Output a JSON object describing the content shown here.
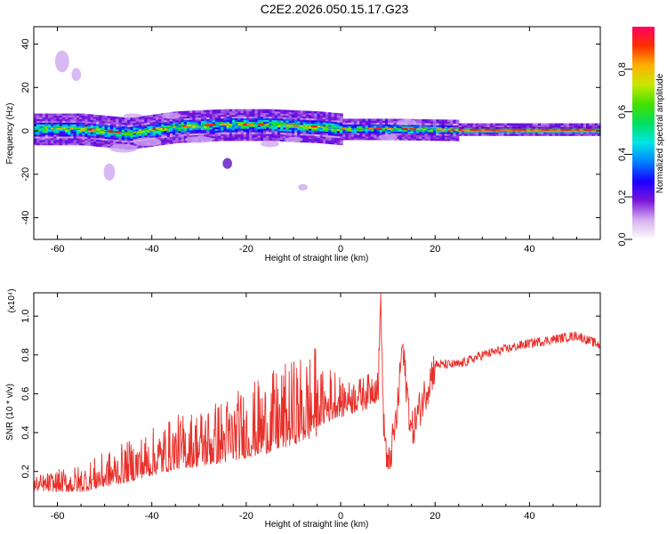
{
  "title": "C2E2.2026.050.15.17.G23",
  "chart_data": [
    {
      "type": "heatmap",
      "xlabel": "Height of straight line (km)",
      "ylabel": "Frequency (Hz)",
      "xlim": [
        -65,
        55
      ],
      "ylim": [
        -50,
        48
      ],
      "xticks": [
        -60,
        -40,
        -20,
        0,
        20,
        40
      ],
      "yticks": [
        -40,
        -20,
        0,
        20,
        40
      ],
      "colorbar": {
        "label": "Normalized spectral amplitude",
        "range": [
          0,
          1
        ],
        "ticks": [
          "0.0",
          "0.2",
          "0.4",
          "0.6",
          "0.8"
        ],
        "colors": [
          "#ffffff",
          "#d6aff0",
          "#7a16d8",
          "#1a00ff",
          "#0080ff",
          "#00e5e5",
          "#00e060",
          "#44e000",
          "#c8e800",
          "#ffb000",
          "#ff3000",
          "#ff0060"
        ]
      },
      "ridge": {
        "description_points": [
          [
            -65,
            1
          ],
          [
            -55,
            1
          ],
          [
            -45,
            -1
          ],
          [
            -35,
            2
          ],
          [
            -25,
            3
          ],
          [
            -15,
            3
          ],
          [
            -5,
            2
          ],
          [
            0,
            1
          ],
          [
            10,
            1
          ],
          [
            25,
            0.5
          ],
          [
            55,
            0.5
          ]
        ]
      }
    },
    {
      "type": "line",
      "xlabel": "Height of straight line (km)",
      "ylabel": "SNR (10 * v/v)",
      "y_multiplier": "(x10⁴)",
      "xlim": [
        -65,
        55
      ],
      "ylim": [
        0.02,
        1.12
      ],
      "xticks": [
        -60,
        -40,
        -20,
        0,
        20,
        40
      ],
      "yticks": [
        0.2,
        0.4,
        0.6,
        0.8,
        1.0
      ],
      "series": [
        {
          "color": "#e8302a",
          "trend": [
            [
              -65,
              0.12
            ],
            [
              -55,
              0.13
            ],
            [
              -45,
              0.2
            ],
            [
              -35,
              0.28
            ],
            [
              -25,
              0.33
            ],
            [
              -15,
              0.4
            ],
            [
              -5,
              0.5
            ],
            [
              0,
              0.56
            ],
            [
              5,
              0.6
            ],
            [
              8,
              0.65
            ],
            [
              8.5,
              1.12
            ],
            [
              9,
              0.5
            ],
            [
              10,
              0.2
            ],
            [
              12,
              0.5
            ],
            [
              13,
              0.85
            ],
            [
              15,
              0.4
            ],
            [
              20,
              0.75
            ],
            [
              25,
              0.75
            ],
            [
              30,
              0.8
            ],
            [
              40,
              0.86
            ],
            [
              50,
              0.9
            ],
            [
              55,
              0.85
            ]
          ]
        }
      ]
    }
  ]
}
